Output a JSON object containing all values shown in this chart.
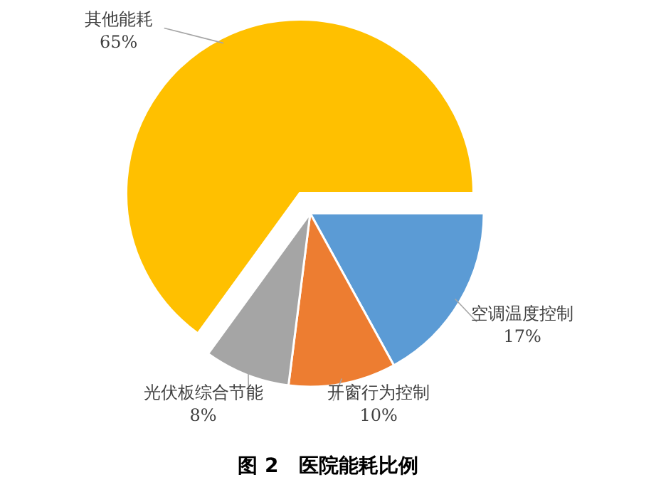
{
  "chart_data": {
    "type": "pie",
    "title": "图 2　医院能耗比例",
    "categories": [
      "空调温度控制",
      "开窗行为控制",
      "光伏板综合节能",
      "其他能耗"
    ],
    "values": [
      17,
      10,
      8,
      65
    ],
    "value_labels": [
      "17%",
      "10%",
      "8%",
      "65%"
    ],
    "colors": [
      "#5b9bd5",
      "#ed7d31",
      "#a5a5a5",
      "#ffc000"
    ]
  }
}
